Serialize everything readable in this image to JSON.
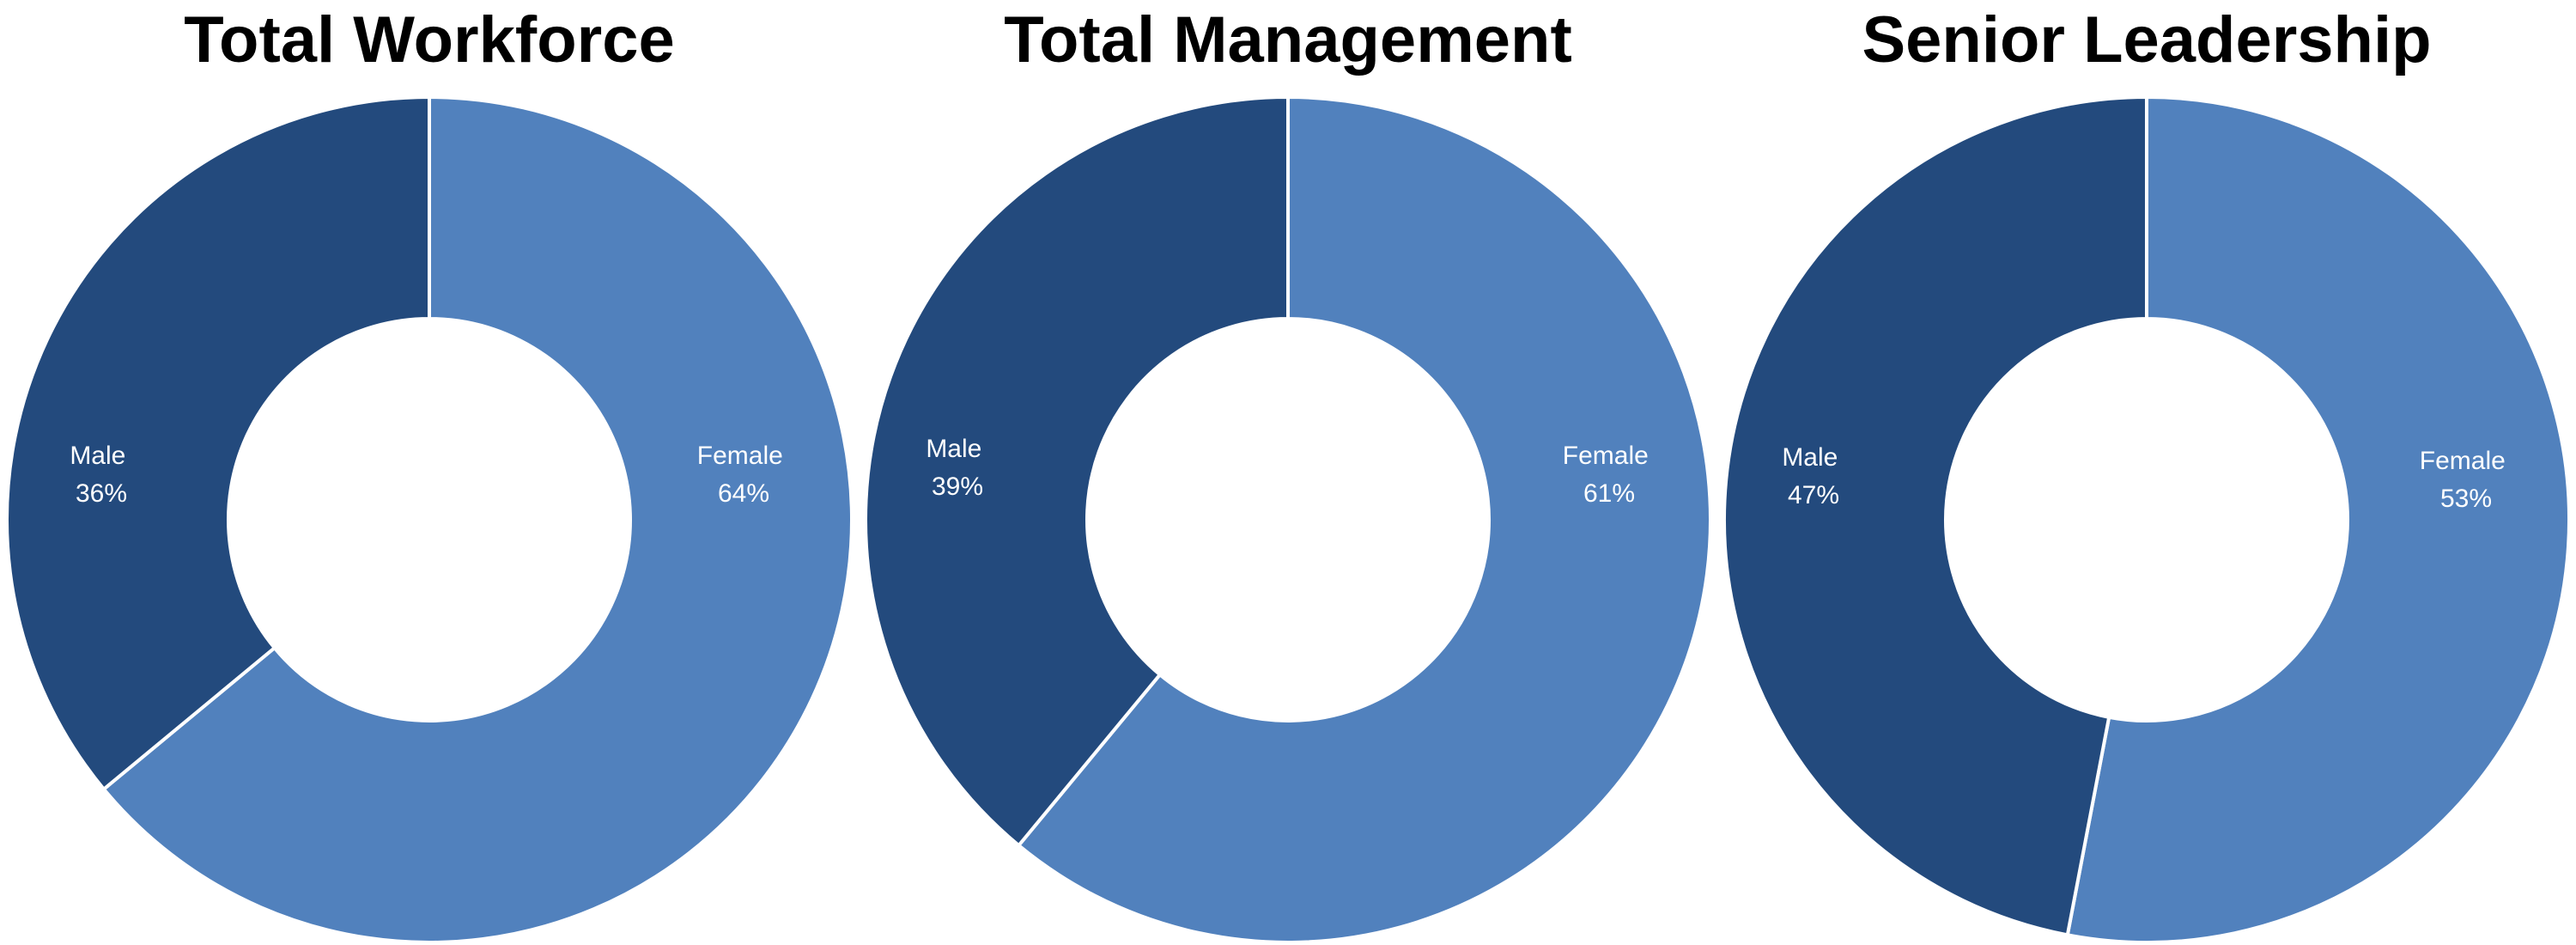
{
  "colors": {
    "male": "#234a7d",
    "female": "#5181bd",
    "separator": "#ffffff"
  },
  "chart_data": [
    {
      "type": "pie",
      "title": "Total Workforce",
      "series": [
        {
          "name": "Male",
          "value": 36,
          "value_label": "36%"
        },
        {
          "name": "Female",
          "value": 64,
          "value_label": "64%"
        }
      ]
    },
    {
      "type": "pie",
      "title": "Total Management",
      "series": [
        {
          "name": "Male",
          "value": 39,
          "value_label": "39%"
        },
        {
          "name": "Female",
          "value": 61,
          "value_label": "61%"
        }
      ]
    },
    {
      "type": "pie",
      "title": "Senior Leadership",
      "series": [
        {
          "name": "Male",
          "value": 47,
          "value_label": "47%"
        },
        {
          "name": "Female",
          "value": 53,
          "value_label": "53%"
        }
      ]
    }
  ]
}
